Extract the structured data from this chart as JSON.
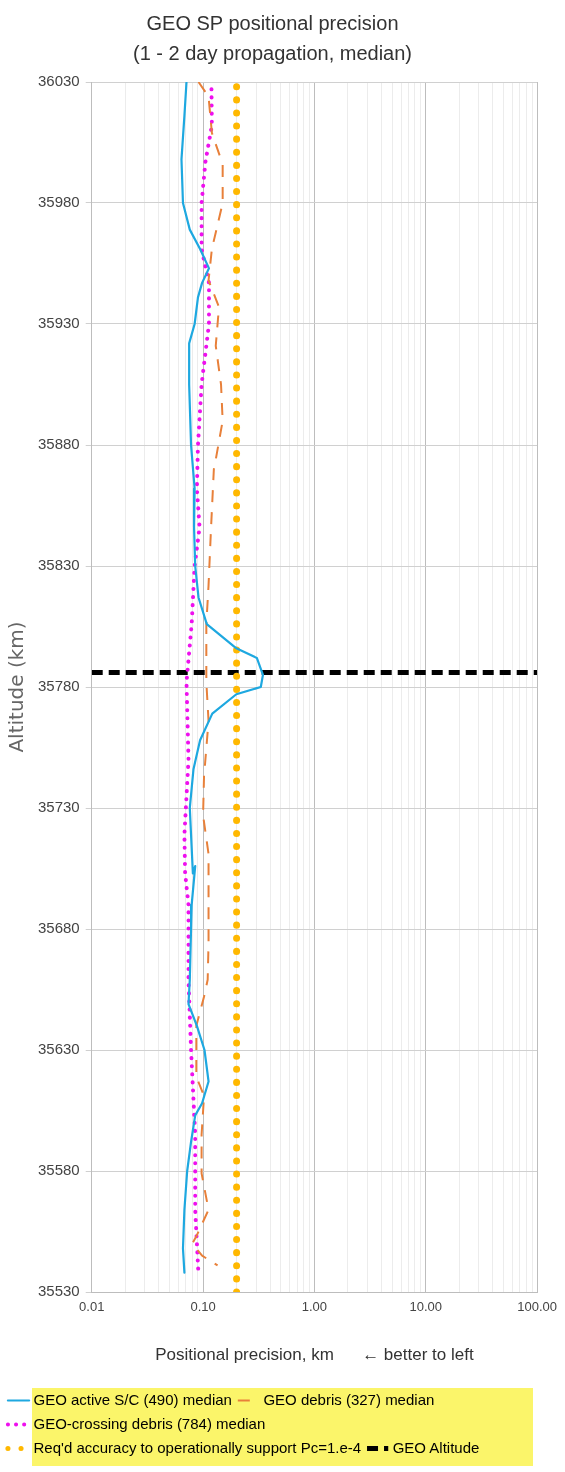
{
  "chart_data": {
    "type": "line",
    "title": "GEO SP positional precision",
    "subtitle": "(1 - 2 day propagation, median)",
    "xlabel": "Positional precision, km      ← better to left",
    "ylabel": "Altitude (km)",
    "log": "x",
    "grid": true,
    "legend": "bottom",
    "xlim": [
      0.01,
      100
    ],
    "ylim": [
      35530,
      36030
    ],
    "xticks": [
      {
        "value": 0.01,
        "label": "0.01"
      },
      {
        "value": 0.02,
        "label": null
      },
      {
        "value": 0.03,
        "label": null
      },
      {
        "value": 0.04,
        "label": null
      },
      {
        "value": 0.05,
        "label": null
      },
      {
        "value": 0.06,
        "label": null
      },
      {
        "value": 0.07,
        "label": null
      },
      {
        "value": 0.08,
        "label": null
      },
      {
        "value": 0.09,
        "label": null
      },
      {
        "value": 0.1,
        "label": "0.10"
      },
      {
        "value": 0.2,
        "label": null
      },
      {
        "value": 0.3,
        "label": null
      },
      {
        "value": 0.4,
        "label": null
      },
      {
        "value": 0.5,
        "label": null
      },
      {
        "value": 0.6,
        "label": null
      },
      {
        "value": 0.7,
        "label": null
      },
      {
        "value": 0.8,
        "label": null
      },
      {
        "value": 0.9,
        "label": null
      },
      {
        "value": 1,
        "label": "1.00"
      },
      {
        "value": 2,
        "label": null
      },
      {
        "value": 3,
        "label": null
      },
      {
        "value": 4,
        "label": null
      },
      {
        "value": 5,
        "label": null
      },
      {
        "value": 6,
        "label": null
      },
      {
        "value": 7,
        "label": null
      },
      {
        "value": 8,
        "label": null
      },
      {
        "value": 9,
        "label": null
      },
      {
        "value": 10,
        "label": "10.00"
      },
      {
        "value": 20,
        "label": null
      },
      {
        "value": 30,
        "label": null
      },
      {
        "value": 40,
        "label": null
      },
      {
        "value": 50,
        "label": null
      },
      {
        "value": 60,
        "label": null
      },
      {
        "value": 70,
        "label": null
      },
      {
        "value": 80,
        "label": null
      },
      {
        "value": 90,
        "label": null
      },
      {
        "value": 100,
        "label": "100.00"
      }
    ],
    "yticks": [
      35530,
      35580,
      35630,
      35680,
      35730,
      35780,
      35830,
      35880,
      35930,
      35980,
      36030
    ],
    "series": [
      {
        "name": "GEO active S/C (490) median",
        "color": "#1ea8e0",
        "line_style": "solid",
        "x": [
          0.071,
          0.068,
          0.064,
          0.066,
          0.076,
          0.094,
          0.113,
          0.098,
          0.09,
          0.084,
          0.075,
          0.075,
          0.078,
          0.084,
          0.083,
          0.085,
          0.091,
          0.108,
          0.199,
          0.304,
          0.345,
          0.33,
          0.199,
          0.121,
          0.094,
          0.082,
          0.076,
          0.081,
          0.085,
          0.079,
          0.078,
          0.076,
          0.074,
          0.088,
          0.103,
          0.112,
          0.098,
          0.085,
          0.078,
          0.072,
          0.068,
          0.066,
          0.068
        ],
        "values": [
          36030,
          36016,
          35998,
          35980,
          35969,
          35961,
          35953,
          35947,
          35941,
          35930,
          35922,
          35905,
          35880,
          35862,
          35846,
          35830,
          35817,
          35806,
          35796,
          35792,
          35785,
          35780,
          35777,
          35769,
          35758,
          35746,
          35730,
          35703,
          35706,
          35690,
          35680,
          35659,
          35649,
          35640,
          35630,
          35617,
          35608,
          35603,
          35592,
          35580,
          35564,
          35548,
          35538
        ]
      },
      {
        "name": "GEO debris (327) median",
        "color": "#e8803a",
        "line_style": "dashed",
        "x": [
          0.091,
          0.112,
          0.12,
          0.15,
          0.15,
          0.12,
          0.112,
          0.139,
          0.13,
          0.145,
          0.15,
          0.13,
          0.125,
          0.118,
          0.112,
          0.107,
          0.107,
          0.112,
          0.102,
          0.1,
          0.112,
          0.112,
          0.112,
          0.11,
          0.102,
          0.087,
          0.087,
          0.102,
          0.097,
          0.097,
          0.112,
          0.087,
          0.08,
          0.098,
          0.135
        ],
        "values": [
          36030,
          36024,
          36009,
          35996,
          35980,
          35961,
          35948,
          35937,
          35921,
          35905,
          35890,
          35874,
          35870,
          35846,
          35822,
          35806,
          35782,
          35766,
          35743,
          35727,
          35711,
          35706,
          35674,
          35659,
          35652,
          35640,
          35619,
          35611,
          35595,
          35579,
          35564,
          35553,
          35550,
          35545,
          35541
        ]
      },
      {
        "name": "GEO-crossing debris (784) median",
        "color": "#ee10ee",
        "line_style": "dotted",
        "x": [
          0.119,
          0.12,
          0.105,
          0.097,
          0.097,
          0.113,
          0.113,
          0.097,
          0.09,
          0.088,
          0.093,
          0.084,
          0.079,
          0.071,
          0.074,
          0.068,
          0.069,
          0.074,
          0.074,
          0.078,
          0.085,
          0.085,
          0.091
        ],
        "values": [
          36027,
          36012,
          35997,
          35980,
          35961,
          35947,
          35930,
          35905,
          35880,
          35862,
          35846,
          35830,
          35806,
          35782,
          35750,
          35719,
          35703,
          35690,
          35659,
          35630,
          35595,
          35564,
          35537
        ]
      },
      {
        "name": "Req'd accuracy to operationally support Pc=1.e-4",
        "color": "#ffb800",
        "line_style": "dotted",
        "x": [
          0.2,
          0.2
        ],
        "values": [
          35530,
          36030
        ]
      },
      {
        "name": "GEO Altitude",
        "color": "#000000",
        "line_style": "dashed",
        "x": [
          0.01,
          100
        ],
        "values": [
          35786,
          35786
        ]
      }
    ]
  }
}
